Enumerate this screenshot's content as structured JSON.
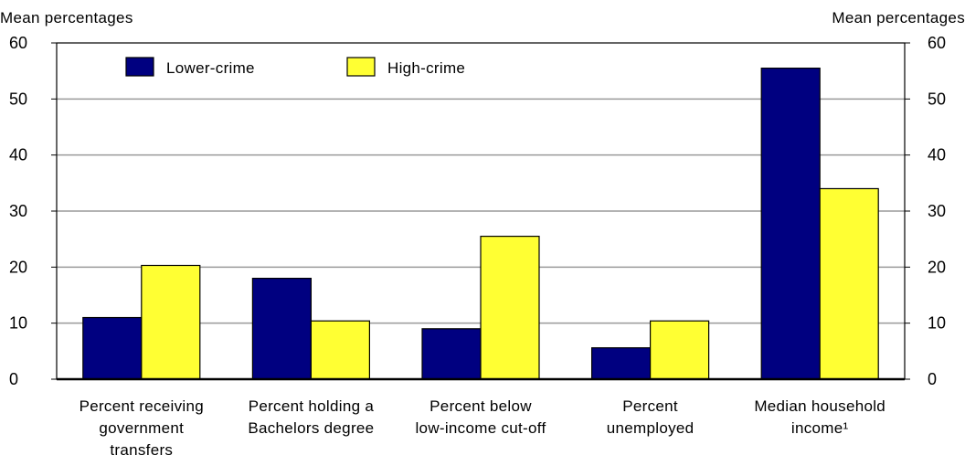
{
  "chart_data": {
    "type": "bar",
    "ylabel_left": "Mean percentages",
    "ylabel_right": "Mean percentages",
    "ylim": [
      0,
      60
    ],
    "yticks": [
      0,
      10,
      20,
      30,
      40,
      50,
      60
    ],
    "grid": true,
    "legend_position": "top-left",
    "categories": [
      [
        "Percent receiving",
        "government",
        "transfers"
      ],
      [
        "Percent holding a",
        "Bachelors degree"
      ],
      [
        "Percent below",
        "low-income cut-off"
      ],
      [
        "Percent",
        "unemployed"
      ],
      [
        "Median household",
        "income¹"
      ]
    ],
    "series": [
      {
        "name": "Lower-crime",
        "color": "#000080",
        "values": [
          11,
          18,
          9,
          5.6,
          55.5
        ]
      },
      {
        "name": "High-crime",
        "color": "#ffff33",
        "values": [
          20.3,
          10.4,
          25.5,
          10.4,
          34
        ]
      }
    ]
  }
}
